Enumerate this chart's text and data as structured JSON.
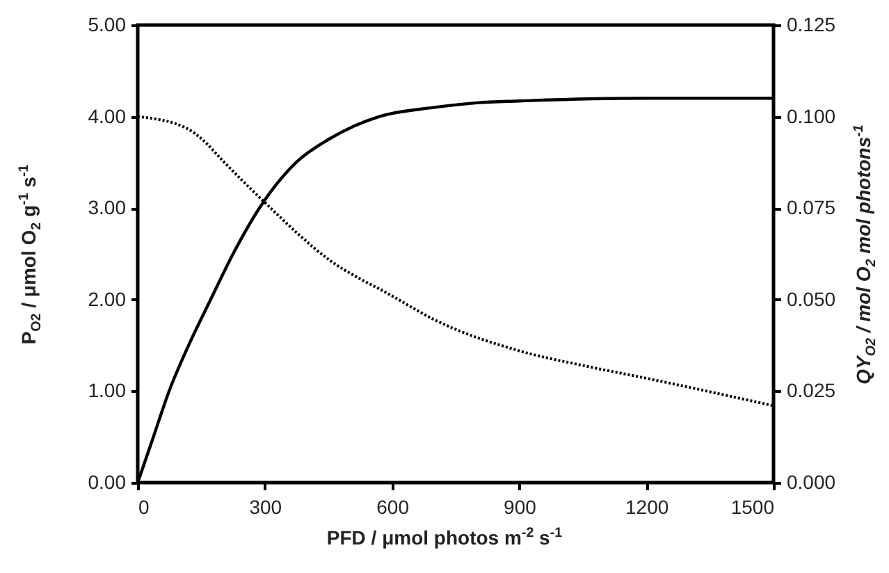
{
  "chart_data": {
    "type": "line",
    "xlabel": "PFD / μmol photos m$^{-2}$ s$^{-1}$",
    "ylabel": "P$_{O2}$ / μmol O$_{2}$ g$^{-1}$ s$^{-1}$",
    "y2label": "QY$_{O2}$ / mol O$_{2}$ mol photons$^{-1}$",
    "xlim": [
      0,
      1500
    ],
    "xticks": [
      0,
      300,
      600,
      900,
      1200,
      1500
    ],
    "ylim": [
      0,
      5
    ],
    "yticks": [
      {
        "value": 0,
        "label": "0.00"
      },
      {
        "value": 1,
        "label": "1.00"
      },
      {
        "value": 2,
        "label": "2.00"
      },
      {
        "value": 3,
        "label": "3.00"
      },
      {
        "value": 4,
        "label": "4.00"
      },
      {
        "value": 5,
        "label": "5.00"
      }
    ],
    "y2lim": [
      0,
      0.125
    ],
    "y2ticks": [
      {
        "value": 0,
        "label": "0.000"
      },
      {
        "value": 0.025,
        "label": "0.025"
      },
      {
        "value": 0.05,
        "label": "0.050"
      },
      {
        "value": 0.075,
        "label": "0.075"
      },
      {
        "value": 0.1,
        "label": "0.100"
      },
      {
        "value": 0.125,
        "label": "0.125"
      }
    ],
    "grid": false,
    "marker": "none",
    "series": [
      {
        "color": "#000000",
        "line_style": "solid",
        "x": [
          0,
          37,
          74,
          120,
          172,
          225,
          287,
          374,
          450,
          570,
          700,
          800,
          900,
          1200,
          1500
        ],
        "values": [
          0,
          0.5,
          1.0,
          1.5,
          2.0,
          2.5,
          3.0,
          3.5,
          3.75,
          4.0,
          4.1,
          4.15,
          4.17,
          4.2,
          4.2
        ]
      },
      {
        "color": "#000000",
        "line_style": "dotted",
        "axis": "y2",
        "x": [
          0,
          112,
          150,
          200,
          300,
          450,
          600,
          700,
          900,
          1050,
          1200,
          1500
        ],
        "values": [
          0.1,
          0.097,
          0.094,
          0.088,
          0.0765,
          0.061,
          0.051,
          0.0445,
          0.036,
          0.032,
          0.0285,
          0.021
        ]
      }
    ]
  }
}
